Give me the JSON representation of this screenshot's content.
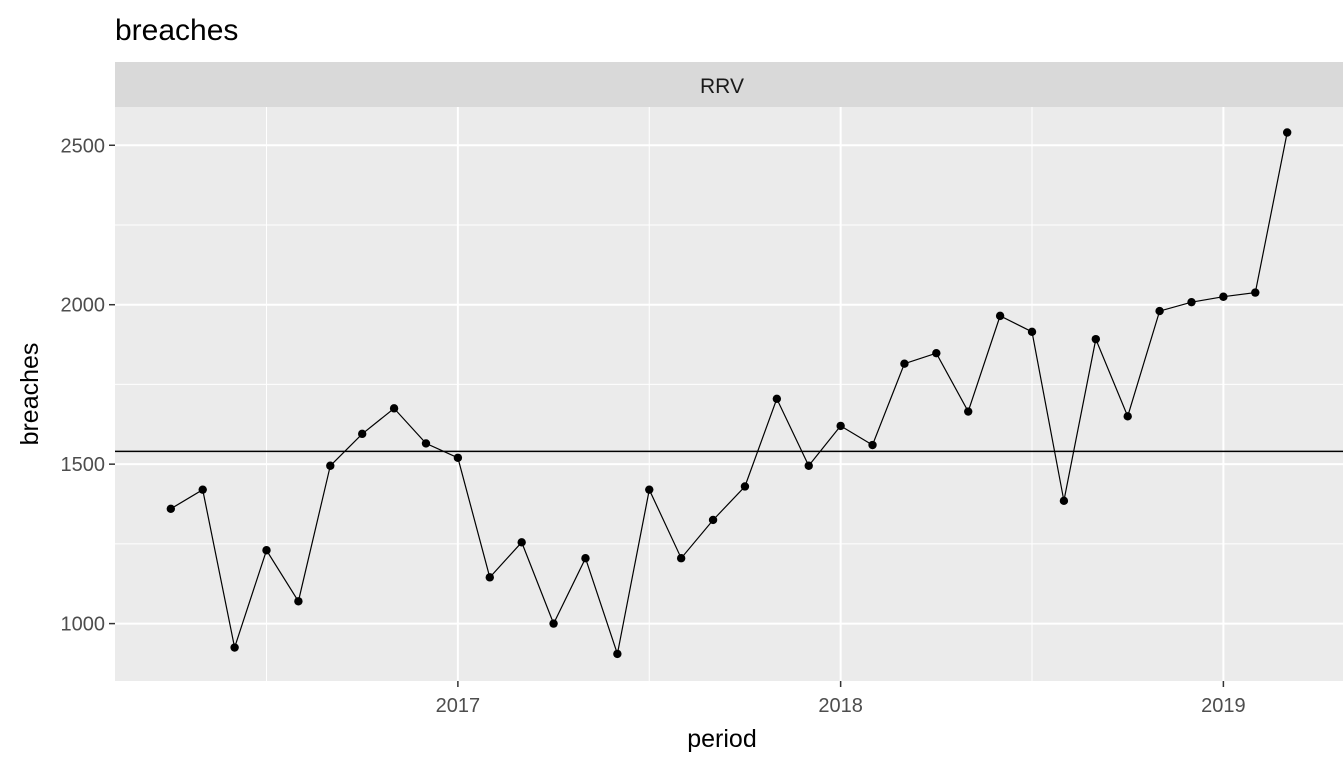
{
  "chart_data": {
    "type": "line",
    "title": "breaches",
    "facet": "RRV",
    "xlabel": "period",
    "ylabel": "breaches",
    "x_tick_labels": [
      "2017",
      "2018",
      "2019"
    ],
    "y_tick_labels": [
      "1000",
      "1500",
      "2000",
      "2500"
    ],
    "ylim": [
      820,
      2620
    ],
    "reference_line": 1540,
    "grid": true,
    "x": [
      "2016-04",
      "2016-05",
      "2016-06",
      "2016-07",
      "2016-08",
      "2016-09",
      "2016-10",
      "2016-11",
      "2016-12",
      "2017-01",
      "2017-02",
      "2017-03",
      "2017-04",
      "2017-05",
      "2017-06",
      "2017-07",
      "2017-08",
      "2017-09",
      "2017-10",
      "2017-11",
      "2017-12",
      "2018-01",
      "2018-02",
      "2018-03",
      "2018-04",
      "2018-05",
      "2018-06",
      "2018-07",
      "2018-08",
      "2018-09",
      "2018-10",
      "2018-11",
      "2018-12",
      "2019-01",
      "2019-02",
      "2019-03"
    ],
    "series": [
      {
        "values": [
          1360,
          1420,
          925,
          1230,
          1070,
          1495,
          1595,
          1675,
          1565,
          1520,
          1145,
          1255,
          1000,
          1205,
          905,
          1420,
          1205,
          1325,
          1430,
          1705,
          1495,
          1620,
          1560,
          1815,
          1848,
          1665,
          1965,
          1915,
          1385,
          1892,
          1650,
          1980,
          2008,
          2025,
          2038,
          2540
        ]
      }
    ]
  }
}
